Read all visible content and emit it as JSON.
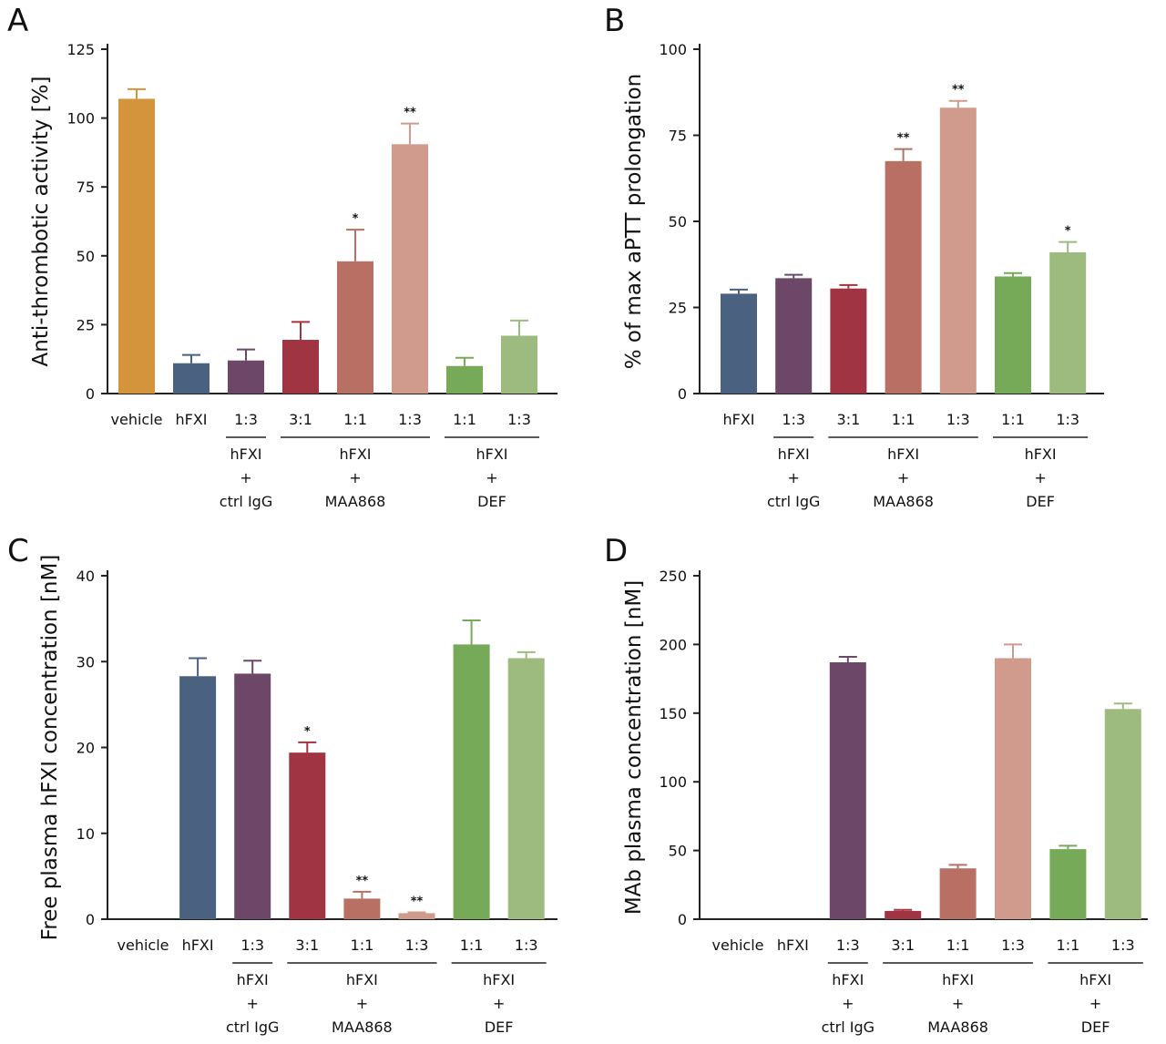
{
  "chart_data": [
    {
      "panel": "A",
      "type": "bar",
      "ylabel": "Anti-thrombotic activity [%]",
      "ylim": [
        0,
        125
      ],
      "yticks": [
        0,
        25,
        50,
        75,
        100,
        125
      ],
      "categories": [
        "vehicle",
        "hFXI",
        "1:3",
        "3:1",
        "1:1",
        "1:3",
        "1:1",
        "1:3"
      ],
      "values": [
        107,
        11,
        12,
        19.5,
        48,
        90.5,
        10,
        21
      ],
      "errors": [
        3.5,
        3,
        4,
        6.5,
        11.5,
        7.5,
        3,
        5.5
      ],
      "significance": [
        "",
        "",
        "",
        "",
        "*",
        "**",
        "",
        ""
      ],
      "colors": [
        "#d4943b",
        "#4a6180",
        "#6c4768",
        "#a03442",
        "#b87064",
        "#d09a8c",
        "#76aa59",
        "#9dba7f"
      ],
      "groups": [
        {
          "from": 2,
          "to": 2,
          "lines": [
            "hFXI",
            "+",
            "ctrl IgG"
          ]
        },
        {
          "from": 3,
          "to": 5,
          "lines": [
            "hFXI",
            "+",
            "MAA868"
          ]
        },
        {
          "from": 6,
          "to": 7,
          "lines": [
            "hFXI",
            "+",
            "DEF"
          ]
        }
      ]
    },
    {
      "panel": "B",
      "type": "bar",
      "ylabel": "% of max aPTT prolongation",
      "ylim": [
        0,
        100
      ],
      "yticks": [
        0,
        25,
        50,
        75,
        100
      ],
      "categories": [
        "hFXI",
        "1:3",
        "3:1",
        "1:1",
        "1:3",
        "1:1",
        "1:3"
      ],
      "values": [
        29,
        33.5,
        30.5,
        67.5,
        83,
        34,
        41
      ],
      "errors": [
        1.2,
        1,
        1,
        3.5,
        2,
        1,
        3
      ],
      "significance": [
        "",
        "",
        "",
        "**",
        "**",
        "",
        "*"
      ],
      "colors": [
        "#4a6180",
        "#6c4768",
        "#a03442",
        "#b87064",
        "#d09a8c",
        "#76aa59",
        "#9dba7f"
      ],
      "groups": [
        {
          "from": 1,
          "to": 1,
          "lines": [
            "hFXI",
            "+",
            "ctrl IgG"
          ]
        },
        {
          "from": 2,
          "to": 4,
          "lines": [
            "hFXI",
            "+",
            "MAA868"
          ]
        },
        {
          "from": 5,
          "to": 6,
          "lines": [
            "hFXI",
            "+",
            "DEF"
          ]
        }
      ]
    },
    {
      "panel": "C",
      "type": "bar",
      "ylabel": "Free plasma hFXI concentration [nM]",
      "ylim": [
        0,
        40
      ],
      "yticks": [
        0,
        10,
        20,
        30,
        40
      ],
      "categories": [
        "vehicle",
        "hFXI",
        "1:3",
        "3:1",
        "1:1",
        "1:3",
        "1:1",
        "1:3"
      ],
      "values": [
        0,
        28.3,
        28.6,
        19.4,
        2.4,
        0.7,
        32,
        30.4
      ],
      "errors": [
        0,
        2.1,
        1.5,
        1.2,
        0.8,
        0.1,
        2.8,
        0.7
      ],
      "significance": [
        "",
        "",
        "",
        "*",
        "**",
        "**",
        "",
        ""
      ],
      "colors": [
        "#d4943b",
        "#4a6180",
        "#6c4768",
        "#a03442",
        "#b87064",
        "#d09a8c",
        "#76aa59",
        "#9dba7f"
      ],
      "groups": [
        {
          "from": 2,
          "to": 2,
          "lines": [
            "hFXI",
            "+",
            "ctrl IgG"
          ]
        },
        {
          "from": 3,
          "to": 5,
          "lines": [
            "hFXI",
            "+",
            "MAA868"
          ]
        },
        {
          "from": 6,
          "to": 7,
          "lines": [
            "hFXI",
            "+",
            "DEF"
          ]
        }
      ]
    },
    {
      "panel": "D",
      "type": "bar",
      "ylabel": "MAb plasma concentration [nM]",
      "ylim": [
        0,
        250
      ],
      "yticks": [
        0,
        50,
        100,
        150,
        200,
        250
      ],
      "categories": [
        "vehicle",
        "hFXI",
        "1:3",
        "3:1",
        "1:1",
        "1:3",
        "1:1",
        "1:3"
      ],
      "values": [
        0,
        0,
        187,
        6,
        37,
        190,
        51,
        153
      ],
      "errors": [
        0,
        0,
        4,
        0.8,
        2.5,
        10,
        2.5,
        4
      ],
      "significance": [
        "",
        "",
        "",
        "",
        "",
        "",
        "",
        ""
      ],
      "colors": [
        "#d4943b",
        "#4a6180",
        "#6c4768",
        "#a03442",
        "#b87064",
        "#d09a8c",
        "#76aa59",
        "#9dba7f"
      ],
      "groups": [
        {
          "from": 2,
          "to": 2,
          "lines": [
            "hFXI",
            "+",
            "ctrl IgG"
          ]
        },
        {
          "from": 3,
          "to": 5,
          "lines": [
            "hFXI",
            "+",
            "MAA868"
          ]
        },
        {
          "from": 6,
          "to": 7,
          "lines": [
            "hFXI",
            "+",
            "DEF"
          ]
        }
      ]
    }
  ]
}
